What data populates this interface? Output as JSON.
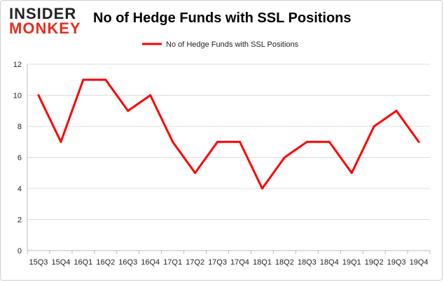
{
  "logo": {
    "line1": "INSIDER",
    "line2": "MONKEY"
  },
  "chart_data": {
    "type": "line",
    "title": "No of Hedge Funds with SSL Positions",
    "categories": [
      "15Q3",
      "15Q4",
      "16Q1",
      "16Q2",
      "16Q3",
      "16Q4",
      "17Q1",
      "17Q2",
      "17Q3",
      "17Q4",
      "18Q1",
      "18Q2",
      "18Q3",
      "18Q4",
      "19Q1",
      "19Q2",
      "19Q3",
      "19Q4"
    ],
    "series": [
      {
        "name": "No of Hedge Funds with SSL Positions",
        "values": [
          10,
          7,
          11,
          11,
          9,
          10,
          7,
          5,
          7,
          7,
          4,
          6,
          7,
          7,
          5,
          8,
          9,
          7
        ],
        "color": "#ff0000"
      }
    ],
    "xlabel": "",
    "ylabel": "",
    "ylim": [
      0,
      12
    ],
    "yticks": [
      0,
      2,
      4,
      6,
      8,
      10,
      12
    ],
    "grid": true,
    "legend": "top-center"
  }
}
